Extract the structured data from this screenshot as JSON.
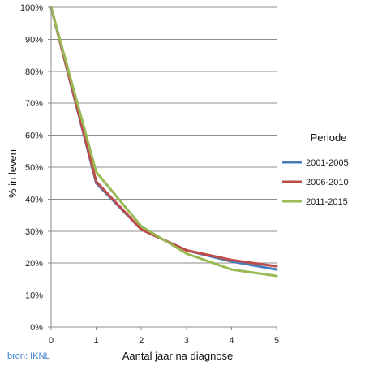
{
  "chart_data": {
    "type": "line",
    "xlabel": "Aantal jaar na diagnose",
    "ylabel": "% in leven",
    "x": [
      0,
      1,
      2,
      3,
      4,
      5
    ],
    "xlim": [
      0,
      5
    ],
    "ylim": [
      0,
      100
    ],
    "y_ticks": [
      0,
      10,
      20,
      30,
      40,
      50,
      60,
      70,
      80,
      90,
      100
    ],
    "y_tick_labels": [
      "0%",
      "10%",
      "20%",
      "30%",
      "40%",
      "50%",
      "60%",
      "70%",
      "80%",
      "90%",
      "100%"
    ],
    "x_tick_labels": [
      "0",
      "1",
      "2",
      "3",
      "4",
      "5"
    ],
    "grid": "horizontal",
    "legend": {
      "title": "Periode",
      "placement": "right"
    },
    "series": [
      {
        "name": "2001-2005",
        "color": "#4a7ebb",
        "values": [
          100,
          45,
          30.5,
          24,
          20.5,
          18
        ]
      },
      {
        "name": "2006-2010",
        "color": "#be4b48",
        "values": [
          100,
          45.5,
          30.5,
          24,
          21,
          19
        ]
      },
      {
        "name": "2011-2015",
        "color": "#98b954",
        "values": [
          100,
          48.5,
          31.5,
          23,
          18,
          16
        ]
      }
    ]
  },
  "source_note": "bron: IKNL"
}
